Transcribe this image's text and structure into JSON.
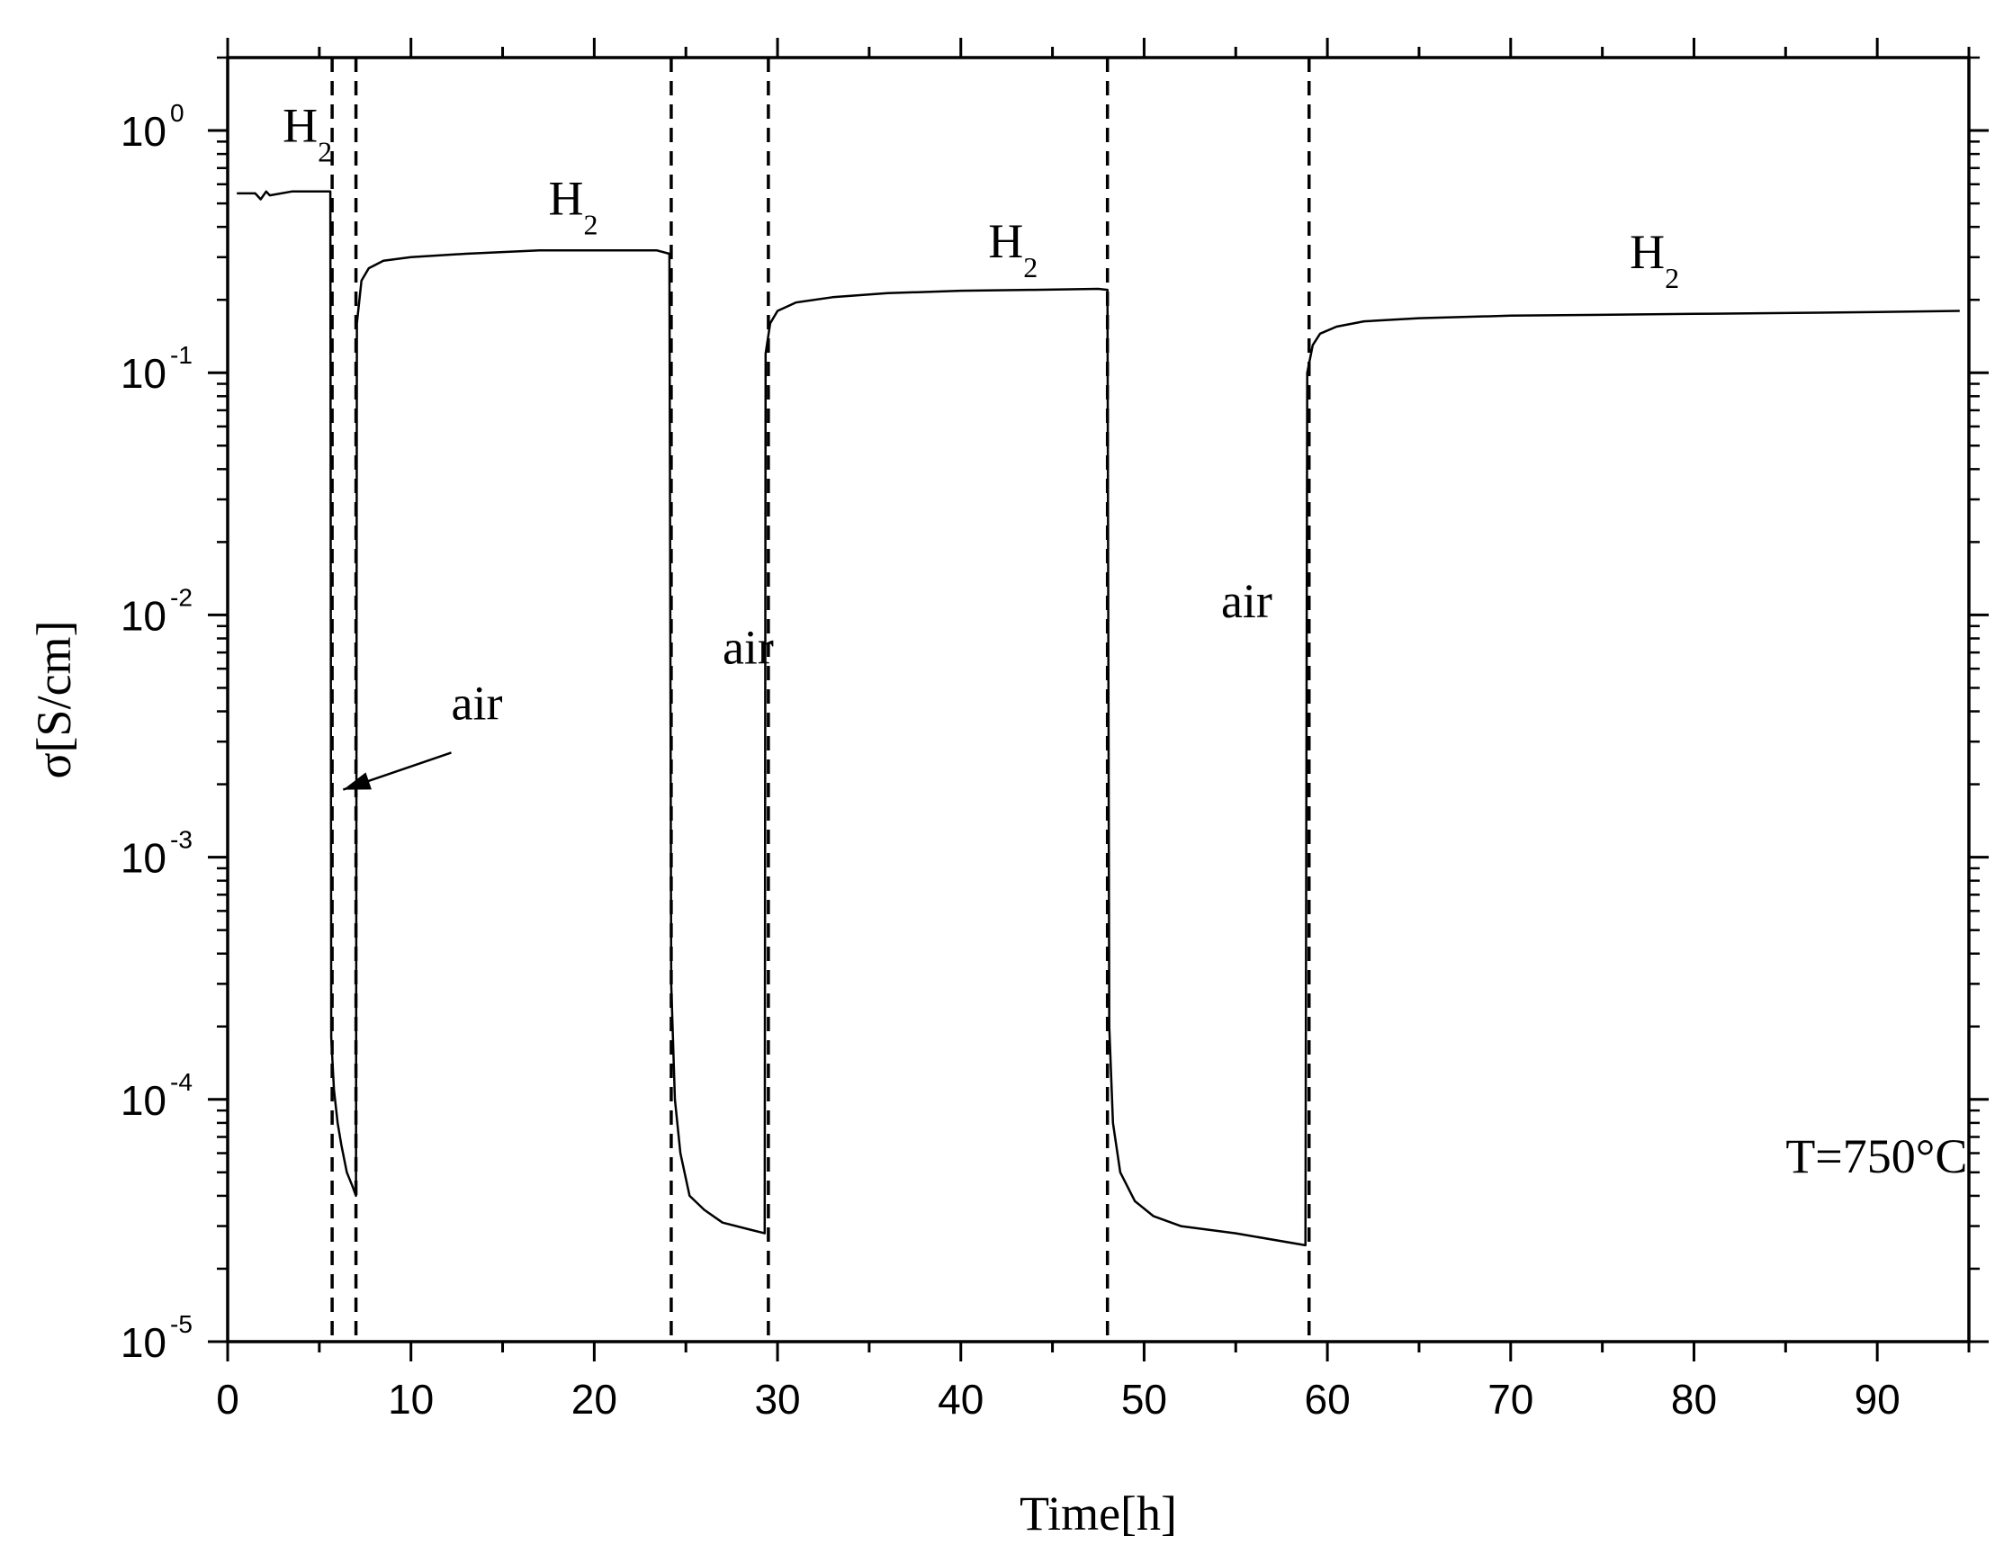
{
  "chart_data": {
    "type": "line",
    "title": "",
    "xlabel": "Time[h]",
    "ylabel": "σ[S/cm]",
    "x_scale": "linear",
    "y_scale": "log",
    "xlim": [
      0,
      95
    ],
    "ylim": [
      1e-05,
      2.0
    ],
    "xticks": [
      0,
      10,
      20,
      30,
      40,
      50,
      60,
      70,
      80,
      90
    ],
    "xtick_labels": [
      "0",
      "10",
      "20",
      "30",
      "40",
      "50",
      "60",
      "70",
      "80",
      "90"
    ],
    "yticks": [
      {
        "value": 1,
        "base": "10",
        "exp": "0"
      },
      {
        "value": 0.1,
        "base": "10",
        "exp": "-1"
      },
      {
        "value": 0.01,
        "base": "10",
        "exp": "-2"
      },
      {
        "value": 0.001,
        "base": "10",
        "exp": "-3"
      },
      {
        "value": 0.0001,
        "base": "10",
        "exp": "-4"
      },
      {
        "value": 1e-05,
        "base": "10",
        "exp": "-5"
      }
    ],
    "grid": false,
    "legend": "none",
    "series": [
      {
        "color": "#000000",
        "points": [
          [
            0.5,
            0.55
          ],
          [
            1.5,
            0.55
          ],
          [
            1.8,
            0.52
          ],
          [
            2.1,
            0.56
          ],
          [
            2.3,
            0.54
          ],
          [
            3.5,
            0.56
          ],
          [
            5.6,
            0.56
          ],
          [
            5.65,
            0.00018
          ],
          [
            5.8,
            0.00011
          ],
          [
            6.0,
            8e-05
          ],
          [
            6.2,
            6.5e-05
          ],
          [
            6.5,
            5e-05
          ],
          [
            6.8,
            4.4e-05
          ],
          [
            7.0,
            4e-05
          ],
          [
            7.05,
            0.16
          ],
          [
            7.3,
            0.24
          ],
          [
            7.7,
            0.27
          ],
          [
            8.5,
            0.29
          ],
          [
            10,
            0.3
          ],
          [
            13,
            0.31
          ],
          [
            17,
            0.32
          ],
          [
            21,
            0.32
          ],
          [
            23.4,
            0.32
          ],
          [
            24.1,
            0.31
          ],
          [
            24.2,
            0.0003
          ],
          [
            24.4,
            0.0001
          ],
          [
            24.7,
            6e-05
          ],
          [
            25.2,
            4e-05
          ],
          [
            26,
            3.5e-05
          ],
          [
            27,
            3.1e-05
          ],
          [
            28.5,
            2.9e-05
          ],
          [
            29.3,
            2.8e-05
          ],
          [
            29.35,
            0.12
          ],
          [
            29.6,
            0.16
          ],
          [
            30,
            0.18
          ],
          [
            31,
            0.195
          ],
          [
            33,
            0.205
          ],
          [
            36,
            0.213
          ],
          [
            40,
            0.218
          ],
          [
            44,
            0.22
          ],
          [
            47.5,
            0.222
          ],
          [
            48.0,
            0.22
          ],
          [
            48.1,
            0.0002
          ],
          [
            48.3,
            8e-05
          ],
          [
            48.7,
            5e-05
          ],
          [
            49.5,
            3.8e-05
          ],
          [
            50.5,
            3.3e-05
          ],
          [
            52,
            3e-05
          ],
          [
            55,
            2.8e-05
          ],
          [
            58.8,
            2.5e-05
          ],
          [
            58.9,
            0.1
          ],
          [
            59.2,
            0.13
          ],
          [
            59.6,
            0.145
          ],
          [
            60.5,
            0.155
          ],
          [
            62,
            0.163
          ],
          [
            65,
            0.168
          ],
          [
            70,
            0.172
          ],
          [
            80,
            0.175
          ],
          [
            90,
            0.178
          ],
          [
            94.5,
            0.18
          ]
        ]
      }
    ],
    "vlines": [
      5.7,
      7.0,
      24.2,
      29.5,
      48.0,
      59.0
    ],
    "annotations": {
      "h2_1": {
        "text": "H",
        "sub": "2",
        "x": 3.0,
        "y": 0.9
      },
      "h2_2": {
        "text": "H",
        "sub": "2",
        "x": 17.5,
        "y": 0.45
      },
      "h2_3": {
        "text": "H",
        "sub": "2",
        "x": 41.5,
        "y": 0.3
      },
      "h2_4": {
        "text": "H",
        "sub": "2",
        "x": 76.5,
        "y": 0.27
      },
      "air_1": {
        "text": "air",
        "x": 12.2,
        "y": 0.0037
      },
      "air_2": {
        "text": "air",
        "x": 27.0,
        "y": 0.0063
      },
      "air_3": {
        "text": "air",
        "x": 54.2,
        "y": 0.0098
      },
      "temp": {
        "text": "T=750°C",
        "x": 85.0,
        "y": 5e-05
      }
    },
    "arrow": {
      "from": [
        12.2,
        0.0027
      ],
      "to": [
        6.3,
        0.0019
      ]
    }
  }
}
